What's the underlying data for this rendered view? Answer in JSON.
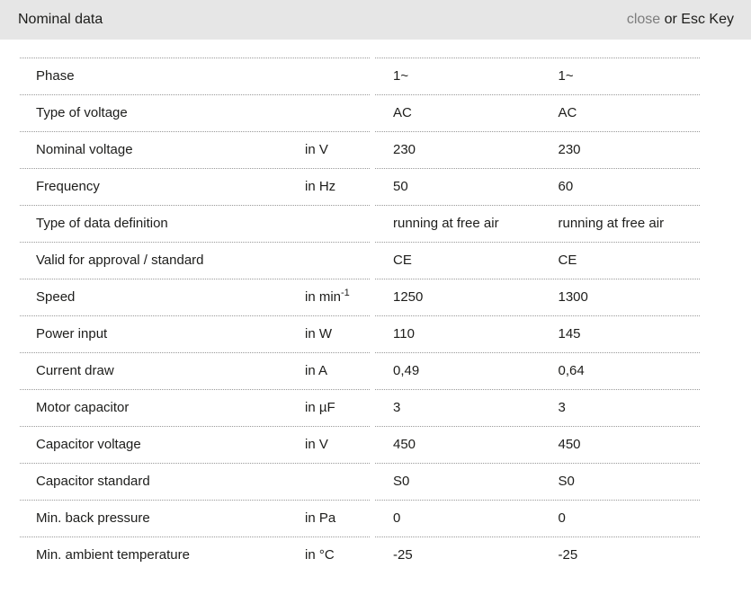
{
  "header": {
    "title": "Nominal data",
    "close_label": "close",
    "close_suffix": " or Esc Key"
  },
  "colors": {
    "header_bg": "#e6e6e6",
    "divider": "#999999",
    "text": "#1d1d1b",
    "close_link": "#7c7c7c"
  },
  "table": {
    "rows": [
      {
        "label": "Phase",
        "unit": "",
        "v1": "1~",
        "v2": "1~"
      },
      {
        "label": "Type of voltage",
        "unit": "",
        "v1": "AC",
        "v2": "AC"
      },
      {
        "label": "Nominal voltage",
        "unit": "in V",
        "v1": "230",
        "v2": "230"
      },
      {
        "label": "Frequency",
        "unit": "in Hz",
        "v1": "50",
        "v2": "60"
      },
      {
        "label": "Type of data definition",
        "unit": "",
        "v1": "running at free air",
        "v2": "running at free air"
      },
      {
        "label": "Valid for approval / standard",
        "unit": "",
        "v1": "CE",
        "v2": "CE"
      },
      {
        "label": "Speed",
        "unit": "in min",
        "unit_sup": "-1",
        "v1": "1250",
        "v2": "1300"
      },
      {
        "label": "Power input",
        "unit": "in W",
        "v1": "110",
        "v2": "145"
      },
      {
        "label": "Current draw",
        "unit": "in A",
        "v1": "0,49",
        "v2": "0,64"
      },
      {
        "label": "Motor capacitor",
        "unit": "in µF",
        "v1": "3",
        "v2": "3"
      },
      {
        "label": "Capacitor voltage",
        "unit": "in V",
        "v1": "450",
        "v2": "450"
      },
      {
        "label": "Capacitor standard",
        "unit": "",
        "v1": "S0",
        "v2": "S0"
      },
      {
        "label": "Min. back pressure",
        "unit": "in Pa",
        "v1": "0",
        "v2": "0"
      },
      {
        "label": "Min. ambient temperature",
        "unit": "in °C",
        "v1": "-25",
        "v2": "-25"
      }
    ]
  }
}
